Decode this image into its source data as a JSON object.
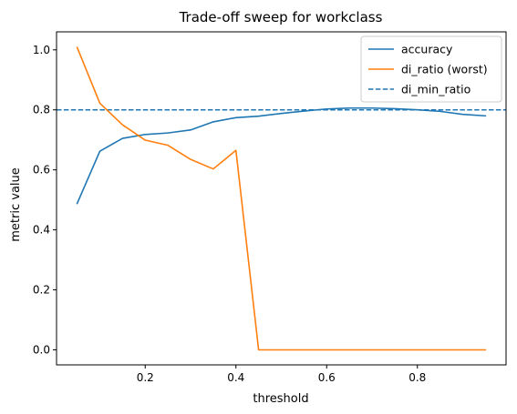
{
  "chart_data": {
    "type": "line",
    "title": "Trade-off sweep for workclass",
    "xlabel": "threshold",
    "ylabel": "metric value",
    "xlim": [
      0.0045,
      0.9955
    ],
    "ylim": [
      -0.05,
      1.06
    ],
    "x_ticks": [
      0.2,
      0.4,
      0.6,
      0.8
    ],
    "x_tick_labels": [
      "0.2",
      "0.4",
      "0.6",
      "0.8"
    ],
    "y_ticks": [
      0.0,
      0.2,
      0.4,
      0.6,
      0.8,
      1.0
    ],
    "y_tick_labels": [
      "0.0",
      "0.2",
      "0.4",
      "0.6",
      "0.8",
      "1.0"
    ],
    "grid": false,
    "legend_position": "top-right",
    "x": [
      0.05,
      0.1,
      0.15,
      0.2,
      0.25,
      0.3,
      0.35,
      0.4,
      0.45,
      0.5,
      0.55,
      0.6,
      0.65,
      0.7,
      0.75,
      0.8,
      0.85,
      0.9,
      0.95
    ],
    "series": [
      {
        "name": "accuracy",
        "color": "#1f77b4",
        "style": "solid",
        "values": [
          0.488,
          0.662,
          0.705,
          0.718,
          0.723,
          0.733,
          0.76,
          0.774,
          0.779,
          0.788,
          0.796,
          0.803,
          0.806,
          0.806,
          0.804,
          0.8,
          0.795,
          0.785,
          0.78
        ]
      },
      {
        "name": "di_ratio (worst)",
        "color": "#ff7f0e",
        "style": "solid",
        "values": [
          1.008,
          0.822,
          0.75,
          0.699,
          0.682,
          0.635,
          0.603,
          0.665,
          0.0,
          0.0,
          0.0,
          0.0,
          0.0,
          0.0,
          0.0,
          0.0,
          0.0,
          0.0,
          0.0
        ]
      }
    ],
    "reference_lines": [
      {
        "name": "di_min_ratio",
        "orientation": "horizontal",
        "y": 0.8,
        "color": "#1f77b4",
        "style": "dashed"
      }
    ]
  }
}
